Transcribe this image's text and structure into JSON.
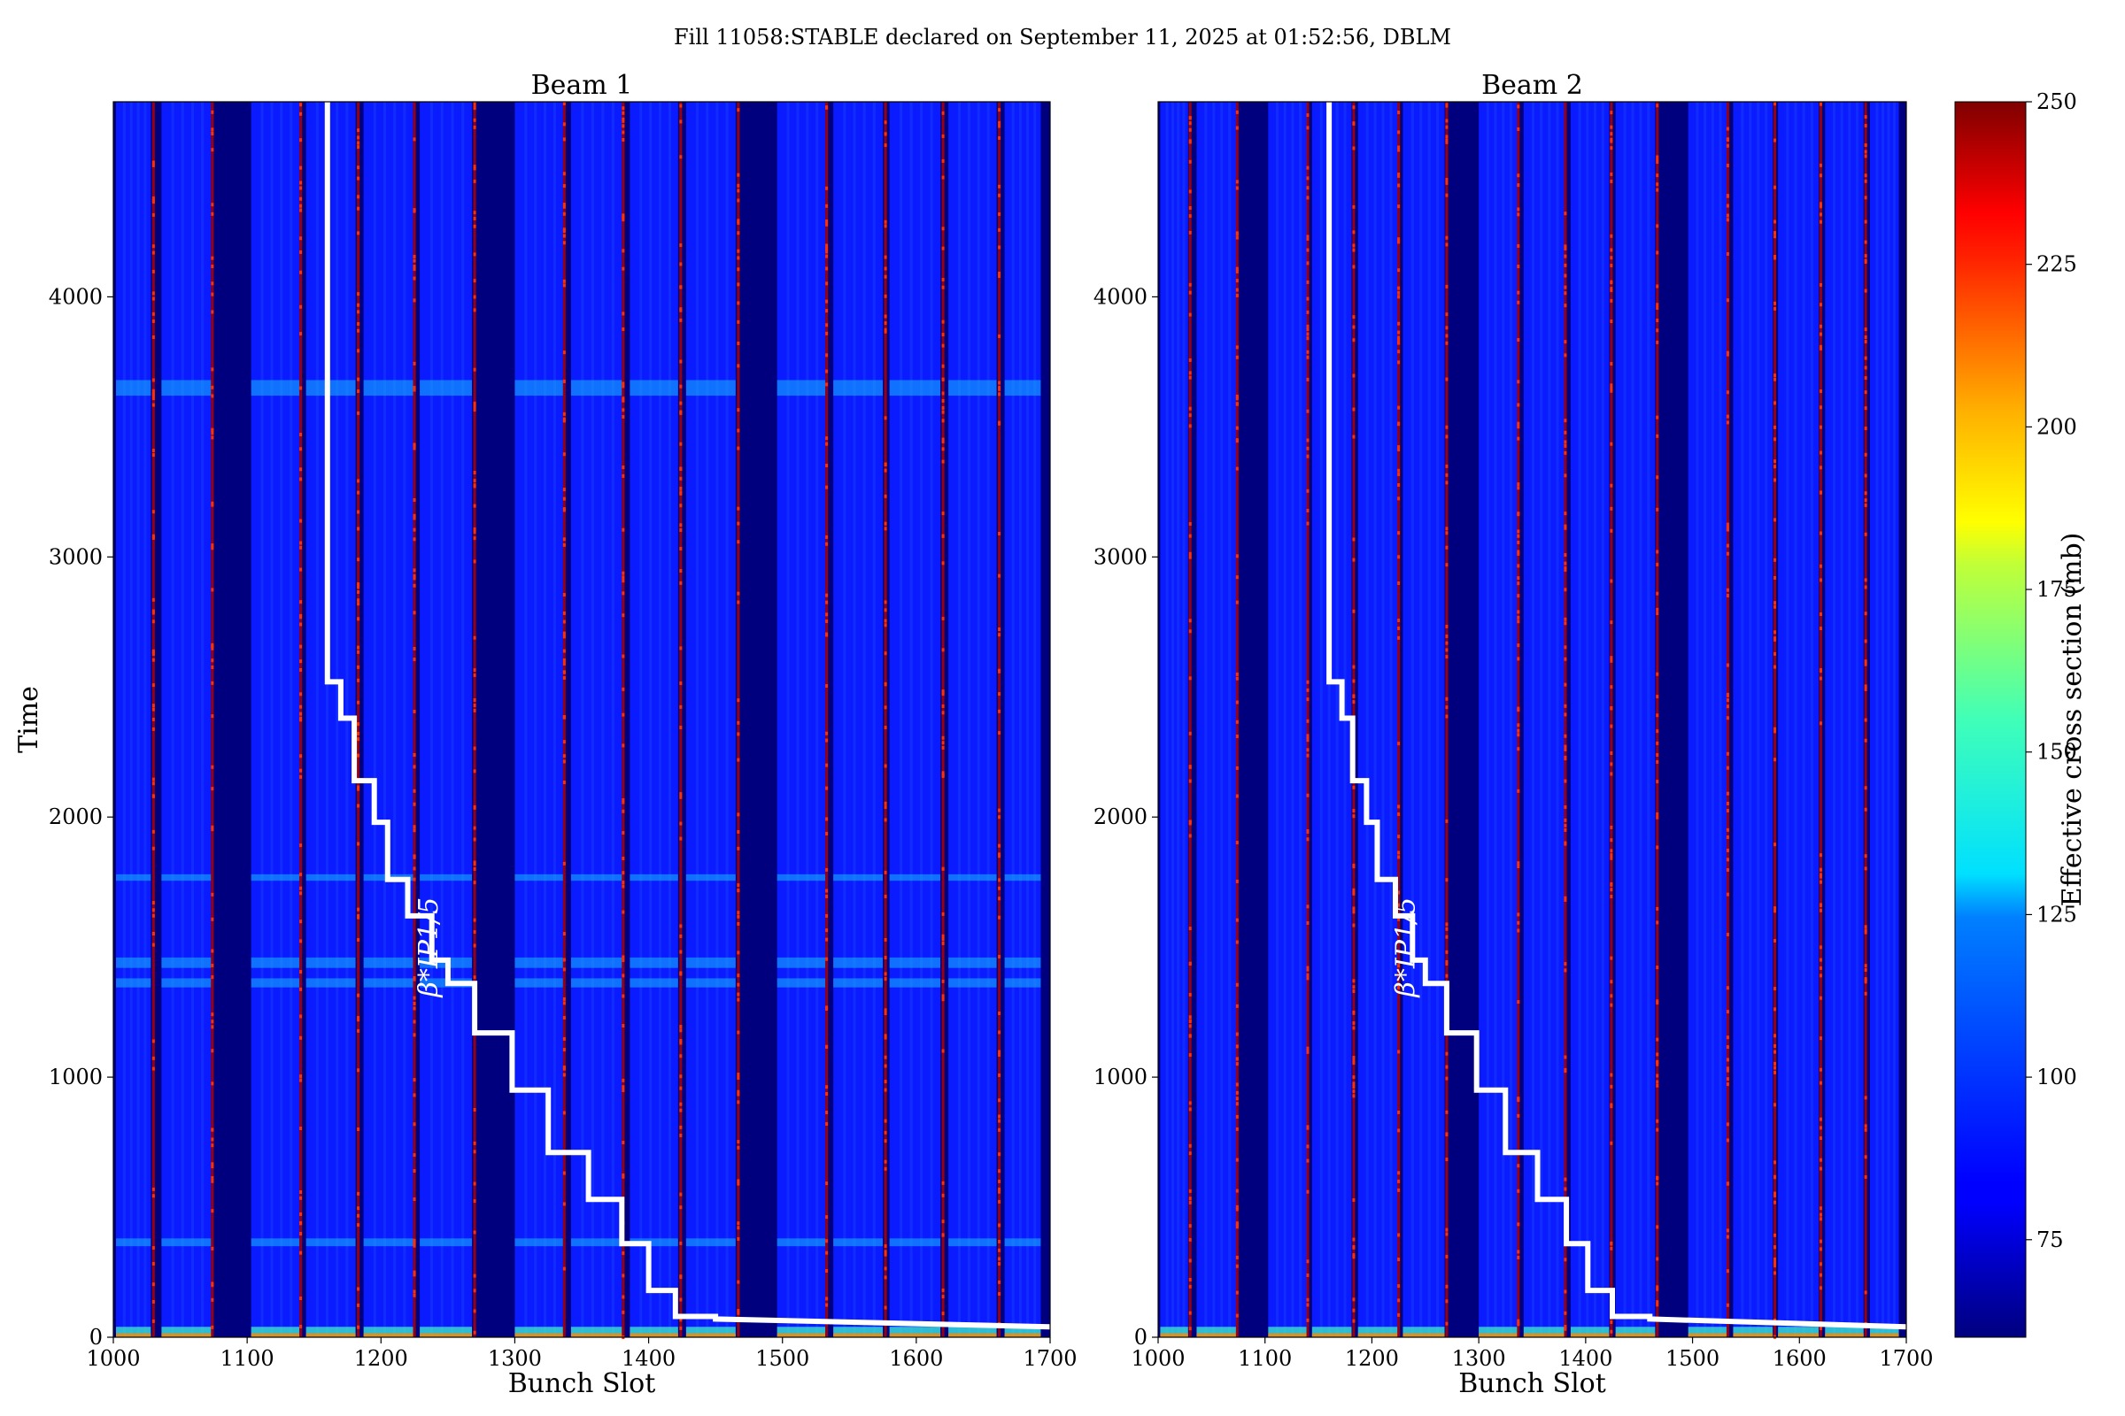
{
  "figure_title": "Fill 11058:STABLE declared on September 11, 2025 at 01:52:56, DBLM",
  "colorbar": {
    "label": "Effective cross section (mb)",
    "range": [
      60,
      250
    ],
    "ticks": [
      75,
      100,
      125,
      150,
      175,
      200,
      225,
      250
    ],
    "colormap": "jet"
  },
  "colors": {
    "background_low": "#00007f",
    "field_blue": "#0a1cff",
    "step_line": "#ffffff"
  },
  "chart_data": [
    {
      "type": "heatmap",
      "title": "Beam 1",
      "xlabel": "Bunch Slot",
      "ylabel": "Time",
      "xlim": [
        1000,
        1700
      ],
      "ylim": [
        0,
        4750
      ],
      "xticks": [
        1000,
        1100,
        1200,
        1300,
        1400,
        1500,
        1600,
        1700
      ],
      "yticks": [
        0,
        1000,
        2000,
        3000,
        4000
      ],
      "filled_trains": [
        [
          1002,
          1028
        ],
        [
          1036,
          1073
        ],
        [
          1103,
          1139
        ],
        [
          1144,
          1181
        ],
        [
          1187,
          1224
        ],
        [
          1229,
          1268
        ],
        [
          1300,
          1336
        ],
        [
          1342,
          1380
        ],
        [
          1386,
          1422
        ],
        [
          1428,
          1465
        ],
        [
          1496,
          1532
        ],
        [
          1538,
          1575
        ],
        [
          1580,
          1618
        ],
        [
          1624,
          1660
        ],
        [
          1666,
          1693
        ]
      ],
      "hot_slots": [
        1030,
        1074,
        1140,
        1183,
        1225,
        1270,
        1337,
        1381,
        1424,
        1467,
        1533,
        1577,
        1620,
        1662
      ],
      "bright_time_bands": [
        [
          1345,
          1380
        ],
        [
          1420,
          1460
        ],
        [
          1755,
          1780
        ],
        [
          350,
          380
        ],
        [
          3620,
          3680
        ]
      ],
      "annotation": {
        "label": "β*IP1/5",
        "x": 1242,
        "y": 1500
      },
      "series": [
        {
          "name": "",
          "type": "step",
          "x": [
            1160,
            1160,
            1170,
            1170,
            1180,
            1180,
            1195,
            1195,
            1205,
            1205,
            1220,
            1220,
            1238,
            1238,
            1250,
            1250,
            1270,
            1270,
            1298,
            1298,
            1325,
            1325,
            1355,
            1355,
            1380,
            1380,
            1400,
            1400,
            1420,
            1420,
            1450,
            1450,
            1700
          ],
          "y": [
            4750,
            2520,
            2520,
            2380,
            2380,
            2140,
            2140,
            1980,
            1980,
            1760,
            1760,
            1620,
            1620,
            1450,
            1450,
            1360,
            1360,
            1170,
            1170,
            950,
            950,
            710,
            710,
            530,
            530,
            360,
            360,
            180,
            180,
            80,
            80,
            70,
            40
          ]
        }
      ]
    },
    {
      "type": "heatmap",
      "title": "Beam 2",
      "xlabel": "Bunch Slot",
      "ylabel": "",
      "xlim": [
        1000,
        1700
      ],
      "ylim": [
        0,
        4750
      ],
      "xticks": [
        1000,
        1100,
        1200,
        1300,
        1400,
        1500,
        1600,
        1700
      ],
      "yticks": [
        0,
        1000,
        2000,
        3000,
        4000
      ],
      "filled_trains": [
        [
          1002,
          1028
        ],
        [
          1036,
          1073
        ],
        [
          1103,
          1139
        ],
        [
          1144,
          1181
        ],
        [
          1187,
          1224
        ],
        [
          1229,
          1268
        ],
        [
          1300,
          1336
        ],
        [
          1342,
          1380
        ],
        [
          1386,
          1422
        ],
        [
          1428,
          1465
        ],
        [
          1496,
          1532
        ],
        [
          1538,
          1575
        ],
        [
          1580,
          1618
        ],
        [
          1624,
          1660
        ],
        [
          1666,
          1693
        ]
      ],
      "hot_slots": [
        1030,
        1074,
        1140,
        1183,
        1225,
        1270,
        1337,
        1381,
        1424,
        1467,
        1533,
        1577,
        1620,
        1662
      ],
      "bright_time_bands": [],
      "annotation": {
        "label": "β*IP1/5",
        "x": 1240,
        "y": 1500
      },
      "series": [
        {
          "name": "",
          "type": "step",
          "x": [
            1160,
            1160,
            1172,
            1172,
            1182,
            1182,
            1195,
            1195,
            1205,
            1205,
            1222,
            1222,
            1238,
            1238,
            1250,
            1250,
            1270,
            1270,
            1298,
            1298,
            1325,
            1325,
            1355,
            1355,
            1382,
            1382,
            1402,
            1402,
            1425,
            1425,
            1460,
            1460,
            1700
          ],
          "y": [
            4750,
            2520,
            2520,
            2380,
            2380,
            2140,
            2140,
            1980,
            1980,
            1760,
            1760,
            1620,
            1620,
            1450,
            1450,
            1360,
            1360,
            1170,
            1170,
            950,
            950,
            710,
            710,
            530,
            530,
            360,
            360,
            180,
            180,
            80,
            80,
            70,
            40
          ]
        }
      ]
    }
  ]
}
